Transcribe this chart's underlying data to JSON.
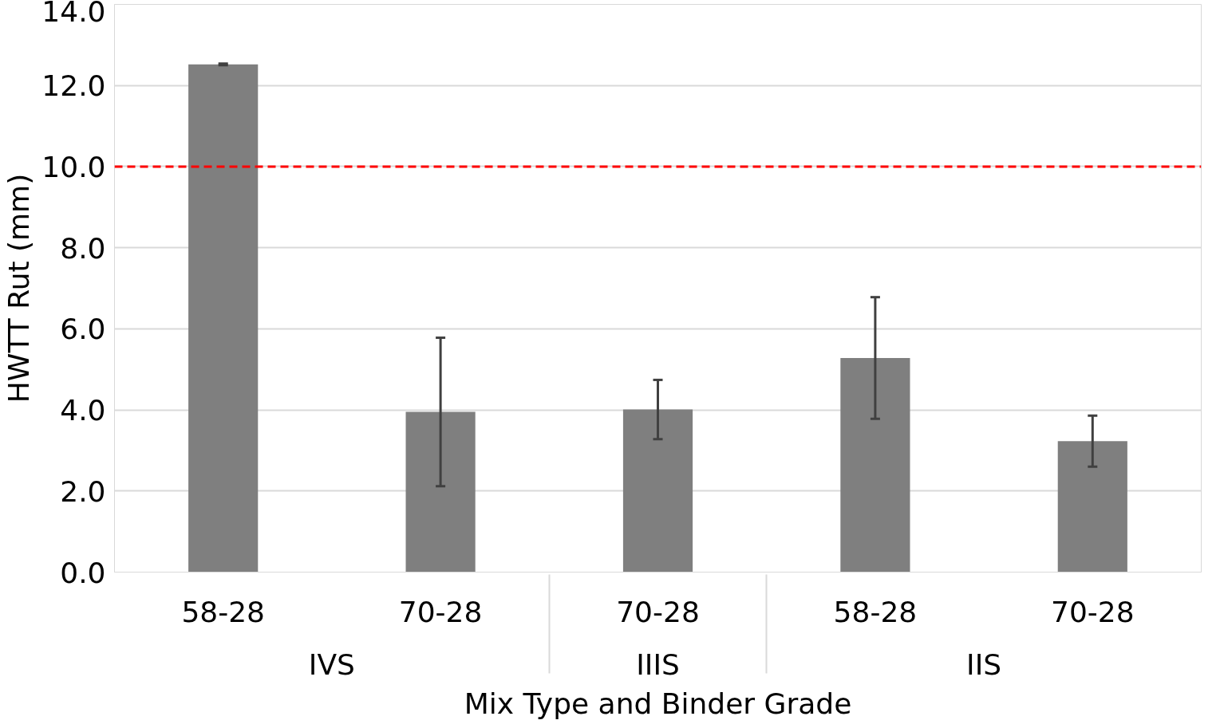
{
  "chart_data": {
    "type": "bar",
    "xlabel": "Mix Type and Binder Grade",
    "ylabel": "HWTT Rut (mm)",
    "categories": [
      "58-28",
      "70-28",
      "70-28",
      "58-28",
      "70-28"
    ],
    "annotations": [
      "IVS",
      "IIIS",
      "IIS"
    ],
    "values": [
      12.52,
      3.95,
      4.01,
      5.28,
      3.23
    ],
    "errors": [
      0.02,
      1.83,
      0.73,
      1.5,
      0.63
    ],
    "color": "#7f7f7f",
    "ylim": [
      0,
      14
    ],
    "yticks": [
      {
        "value": 0,
        "label": "0.0"
      },
      {
        "value": 2,
        "label": "2.0"
      },
      {
        "value": 4,
        "label": "4.0"
      },
      {
        "value": 6,
        "label": "6.0"
      },
      {
        "value": 8,
        "label": "8.0"
      },
      {
        "value": 10,
        "label": "10.0"
      },
      {
        "value": 12,
        "label": "12.0"
      },
      {
        "value": 14,
        "label": "14.0"
      }
    ],
    "grid": "y",
    "ref_lines": [
      {
        "axis": "y",
        "value": 10,
        "color": "#ff0000",
        "line_style": "dashed"
      }
    ]
  }
}
